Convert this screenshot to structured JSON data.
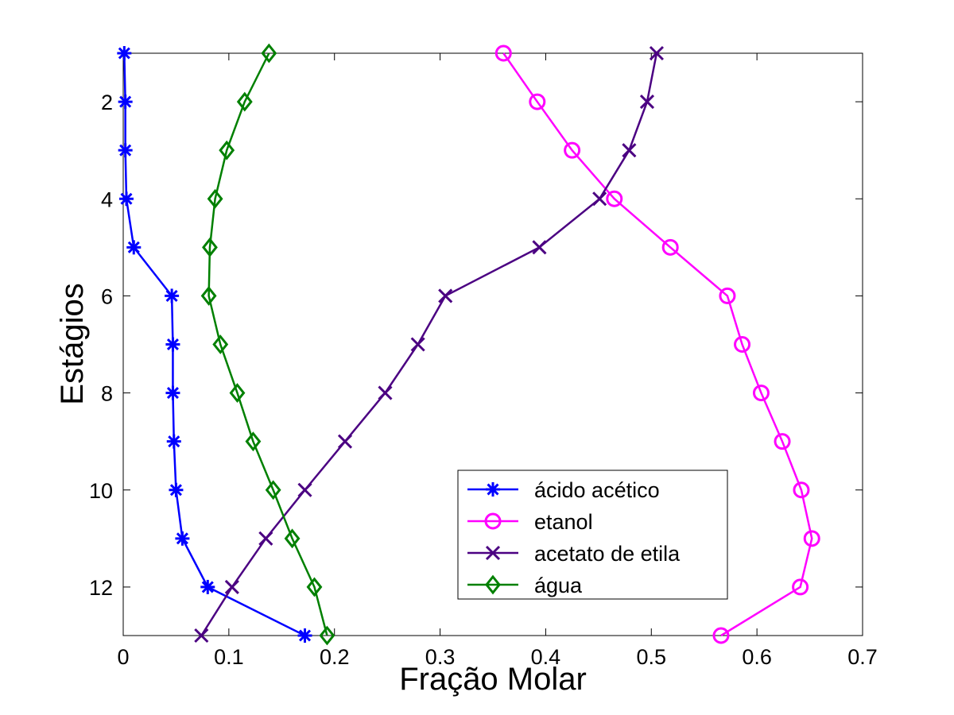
{
  "chart_data": {
    "type": "line",
    "xlabel": "Fração Molar",
    "ylabel": "Estágios",
    "xlim": [
      0,
      0.7
    ],
    "ylim": [
      1,
      13
    ],
    "y_reversed": true,
    "x_ticks": [
      "0",
      "0.1",
      "0.2",
      "0.3",
      "0.4",
      "0.5",
      "0.6",
      "0.7"
    ],
    "y_ticks": [
      "2",
      "4",
      "6",
      "8",
      "10",
      "12"
    ],
    "grid": false,
    "legend_position": "bottom-center",
    "y": [
      1,
      2,
      3,
      4,
      5,
      6,
      7,
      8,
      9,
      10,
      11,
      12,
      13
    ],
    "series": [
      {
        "name": "ácido acético",
        "color": "#0000ff",
        "marker": "asterisk",
        "values": [
          0.001,
          0.002,
          0.002,
          0.003,
          0.01,
          0.046,
          0.047,
          0.047,
          0.048,
          0.05,
          0.056,
          0.08,
          0.172
        ]
      },
      {
        "name": "etanol",
        "color": "#ff00ff",
        "marker": "circle",
        "values": [
          0.36,
          0.392,
          0.425,
          0.465,
          0.518,
          0.572,
          0.586,
          0.604,
          0.624,
          0.642,
          0.652,
          0.641,
          0.566
        ]
      },
      {
        "name": "acetato de etila",
        "color": "#4b0082",
        "marker": "x",
        "values": [
          0.505,
          0.496,
          0.479,
          0.451,
          0.394,
          0.305,
          0.279,
          0.248,
          0.21,
          0.172,
          0.135,
          0.103,
          0.074
        ]
      },
      {
        "name": "água",
        "color": "#008000",
        "marker": "diamond",
        "values": [
          0.138,
          0.115,
          0.098,
          0.087,
          0.082,
          0.081,
          0.092,
          0.108,
          0.123,
          0.142,
          0.16,
          0.181,
          0.193
        ]
      }
    ]
  }
}
